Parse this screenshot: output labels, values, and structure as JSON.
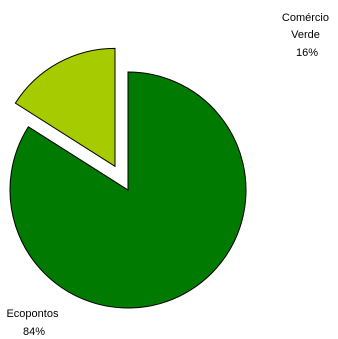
{
  "chart_data": {
    "type": "pie",
    "title": "",
    "slices": [
      {
        "name_lines": [
          "Ecopontos"
        ],
        "value": 84,
        "value_label": "84%",
        "color": "#007a00"
      },
      {
        "name_lines": [
          "Comércio",
          "Verde"
        ],
        "value": 16,
        "value_label": "16%",
        "color": "#a6cc00"
      }
    ],
    "start_angle_deg": 0,
    "exploded_slice": 1,
    "legend": "none",
    "labels": "outside"
  }
}
